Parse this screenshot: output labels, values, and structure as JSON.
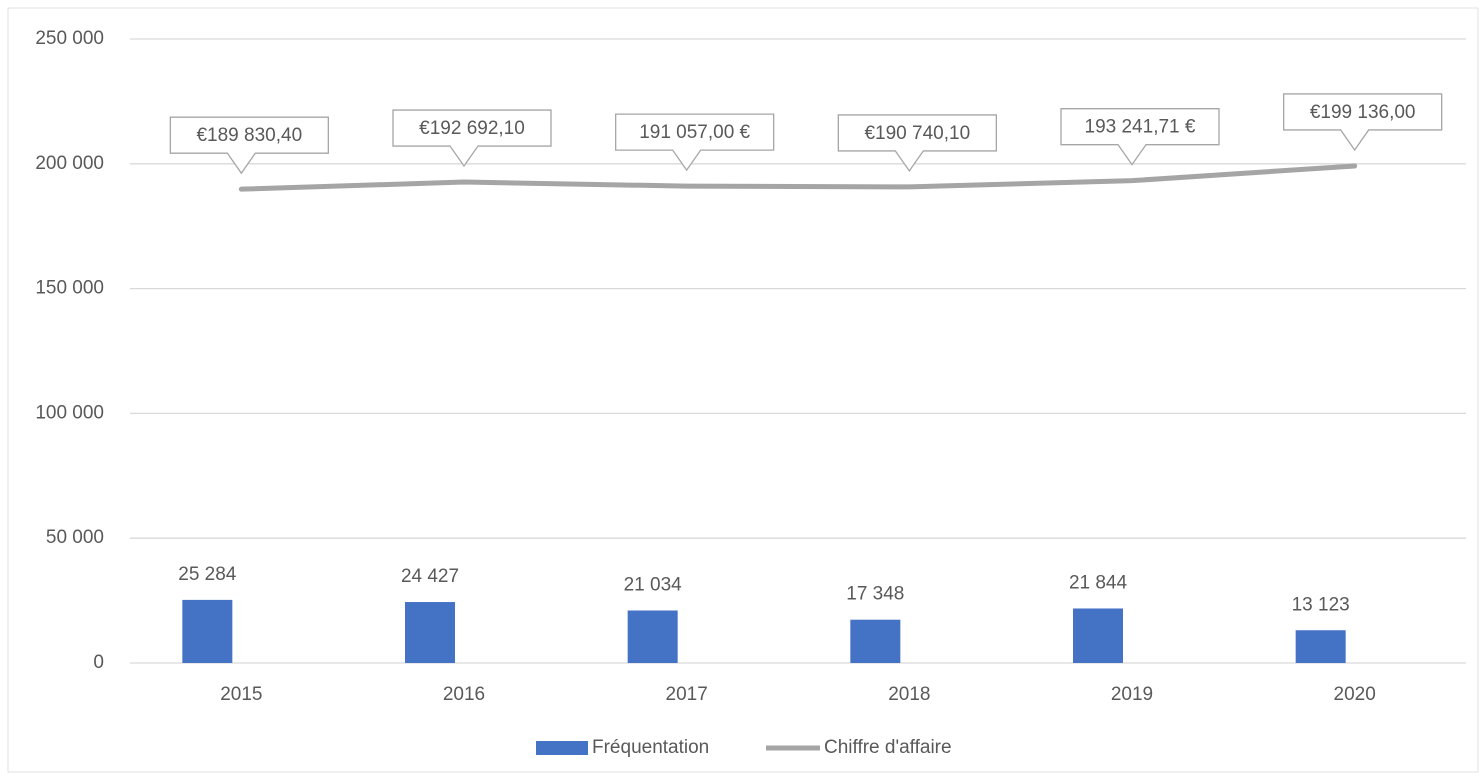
{
  "chart_data": {
    "type": "combo",
    "categories": [
      "2015",
      "2016",
      "2017",
      "2018",
      "2019",
      "2020"
    ],
    "series": [
      {
        "name": "Fréquentation",
        "type": "bar",
        "color": "#4472c4",
        "values": [
          25284,
          24427,
          21034,
          17348,
          21844,
          13123
        ],
        "value_labels": [
          "25 284",
          "24 427",
          "21 034",
          "17 348",
          "21 844",
          "13 123"
        ]
      },
      {
        "name": "Chiffre d'affaire",
        "type": "line",
        "color": "#a5a5a5",
        "values": [
          189830.4,
          192692.1,
          191057.0,
          190740.1,
          193241.71,
          199136.0
        ],
        "value_labels": [
          "€189 830,40",
          "€192 692,10",
          "191 057,00 €",
          "€190 740,10",
          "193 241,71 €",
          "€199 136,00"
        ]
      }
    ],
    "ylim": [
      0,
      250000
    ],
    "yticks": [
      0,
      {
        "value": 50000,
        "label": "50 000"
      },
      {
        "value": 100000,
        "label": "100 000"
      },
      {
        "value": 150000,
        "label": "150 000"
      },
      {
        "value": 200000,
        "label": "200 000"
      },
      {
        "value": 250000,
        "label": "250 000"
      }
    ],
    "grid": true,
    "legend": "bottom"
  }
}
